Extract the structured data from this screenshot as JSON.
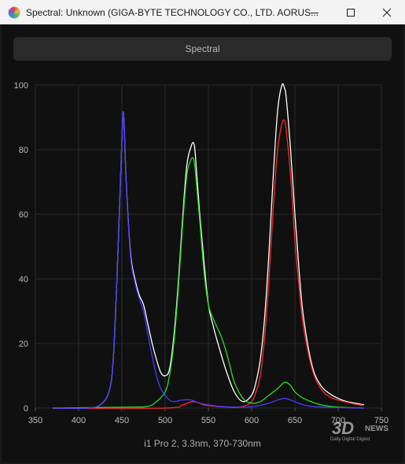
{
  "window": {
    "title": "Spectral: Unknown (GIGA-BYTE TECHNOLOGY CO., LTD. AORUS...",
    "controls": [
      "minimize-icon",
      "maximize-icon",
      "close-icon"
    ]
  },
  "header": {
    "button_label": "Spectral"
  },
  "caption": "i1 Pro 2, 3.3nm, 370-730nm",
  "watermark": {
    "logo_text": "3D",
    "news_text": "NEWS",
    "tagline": "Daily Digital Digest"
  },
  "chart_data": {
    "type": "line",
    "title": "",
    "xlabel": "",
    "ylabel": "",
    "xlim": [
      350,
      750
    ],
    "ylim": [
      0,
      100
    ],
    "x_ticks": [
      350,
      400,
      450,
      500,
      550,
      600,
      650,
      700,
      750
    ],
    "y_ticks": [
      0,
      20,
      40,
      60,
      80,
      100
    ],
    "grid": true,
    "series": [
      {
        "color": "#ffffff",
        "x": [
          370,
          410,
          425,
          435,
          440,
          445,
          450,
          452,
          455,
          460,
          465,
          470,
          475,
          480,
          485,
          490,
          495,
          500,
          505,
          510,
          515,
          520,
          525,
          530,
          533,
          535,
          540,
          545,
          550,
          555,
          560,
          570,
          580,
          590,
          600,
          605,
          610,
          615,
          620,
          625,
          630,
          635,
          638,
          640,
          645,
          650,
          655,
          660,
          670,
          680,
          690,
          700,
          710,
          720,
          730
        ],
        "y": [
          0,
          0,
          1,
          5,
          15,
          45,
          83,
          91,
          70,
          48,
          40,
          35,
          32,
          26,
          20,
          15,
          11,
          10,
          12,
          22,
          38,
          58,
          75,
          81,
          82,
          78,
          60,
          45,
          32,
          26,
          21,
          12,
          5,
          2,
          4,
          8,
          15,
          28,
          48,
          72,
          92,
          100,
          99,
          96,
          80,
          60,
          42,
          28,
          13,
          7,
          4.5,
          3,
          2,
          1.5,
          1
        ]
      },
      {
        "color": "#ff2a2a",
        "x": [
          370,
          500,
          520,
          533,
          545,
          560,
          580,
          590,
          600,
          605,
          610,
          615,
          620,
          625,
          630,
          635,
          638,
          640,
          645,
          650,
          655,
          660,
          670,
          680,
          690,
          700,
          710,
          720,
          730
        ],
        "y": [
          0,
          0,
          1,
          2,
          1,
          0.5,
          0.2,
          0.5,
          2,
          5,
          10,
          22,
          40,
          62,
          80,
          88,
          89,
          86,
          72,
          52,
          37,
          25,
          12,
          6,
          3.5,
          2.5,
          1.8,
          1.2,
          0.8
        ]
      },
      {
        "color": "#22e022",
        "x": [
          370,
          460,
          480,
          490,
          500,
          505,
          510,
          515,
          520,
          525,
          530,
          533,
          535,
          540,
          545,
          550,
          555,
          560,
          565,
          570,
          575,
          580,
          590,
          600,
          610,
          620,
          630,
          638,
          645,
          650,
          660,
          680,
          700,
          730
        ],
        "y": [
          0,
          0.3,
          0.5,
          2,
          5,
          10,
          20,
          36,
          56,
          72,
          77,
          77,
          73,
          58,
          42,
          32,
          28,
          25,
          22,
          18,
          13,
          8,
          3,
          1.5,
          2,
          4,
          6,
          8,
          7,
          5,
          3,
          1,
          0.3,
          0
        ]
      },
      {
        "color": "#4a3cff",
        "x": [
          370,
          410,
          425,
          435,
          440,
          445,
          450,
          452,
          455,
          460,
          465,
          470,
          475,
          480,
          485,
          490,
          495,
          500,
          505,
          510,
          520,
          530,
          540,
          550,
          560,
          580,
          600,
          620,
          630,
          638,
          645,
          660,
          680,
          730
        ],
        "y": [
          0,
          0,
          1,
          5,
          15,
          45,
          83,
          91,
          70,
          47,
          39,
          34,
          30,
          23,
          16,
          10,
          6,
          4,
          2.5,
          2,
          2.5,
          2.5,
          1.5,
          1,
          0.6,
          0.3,
          0.4,
          1.5,
          2.5,
          3,
          2.5,
          1,
          0.3,
          0
        ]
      }
    ]
  }
}
